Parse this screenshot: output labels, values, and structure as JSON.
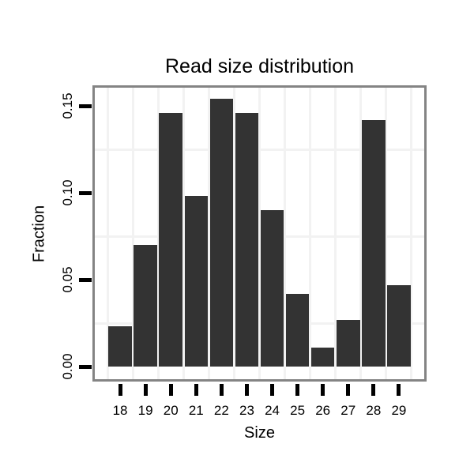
{
  "chart_data": {
    "type": "bar",
    "title": "Read size distribution",
    "xlabel": "Size",
    "ylabel": "Fraction",
    "categories": [
      "18",
      "19",
      "20",
      "21",
      "22",
      "23",
      "24",
      "25",
      "26",
      "27",
      "28",
      "29"
    ],
    "values": [
      0.023,
      0.07,
      0.146,
      0.098,
      0.154,
      0.146,
      0.09,
      0.042,
      0.011,
      0.027,
      0.142,
      0.047
    ],
    "y_tick_labels": [
      "0.00",
      "0.05",
      "0.10",
      "0.15"
    ],
    "y_tick_values": [
      0.0,
      0.05,
      0.1,
      0.15
    ],
    "ylim": [
      0,
      0.1605
    ],
    "minor_gridlines_y": [
      0.025,
      0.075,
      0.125
    ],
    "grid": "minor-only",
    "legend": "none",
    "colors": {
      "bar": "#333333",
      "panel_border": "#848484",
      "gridline": "#f2f2f2",
      "tick": "#000000",
      "text": "#000000",
      "background": "#ffffff"
    }
  }
}
